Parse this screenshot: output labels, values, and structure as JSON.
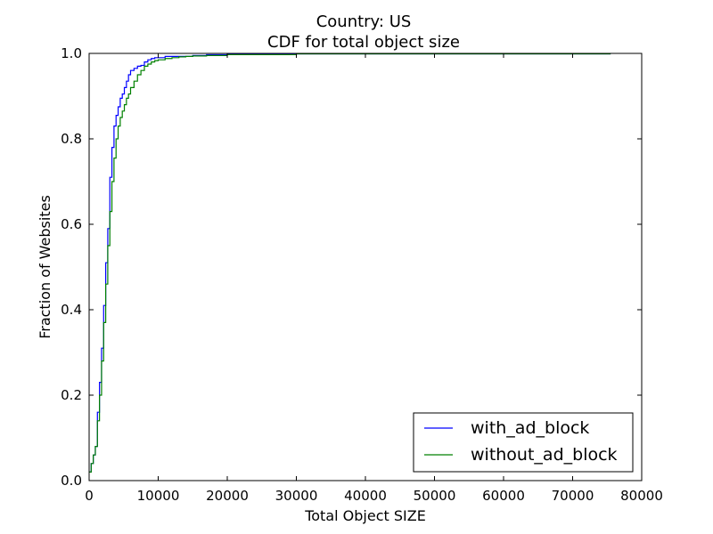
{
  "chart_data": {
    "type": "line",
    "title": "Country: US",
    "subtitle": "CDF for total object size",
    "xlabel": "Total Object SIZE",
    "ylabel": "Fraction of Websites",
    "xlim": [
      0,
      80000
    ],
    "ylim": [
      0,
      1.0
    ],
    "xticks": [
      "0",
      "10000",
      "20000",
      "30000",
      "40000",
      "50000",
      "60000",
      "70000",
      "80000"
    ],
    "yticks": [
      "0.0",
      "0.2",
      "0.4",
      "0.6",
      "0.8",
      "1.0"
    ],
    "grid": false,
    "legend_position": "lower-right",
    "series": [
      {
        "name": "with_ad_block",
        "color": "#0000ff",
        "x": [
          0,
          300,
          600,
          900,
          1200,
          1500,
          1800,
          2100,
          2400,
          2700,
          3000,
          3300,
          3600,
          3900,
          4200,
          4500,
          4800,
          5100,
          5400,
          5700,
          6000,
          6500,
          7000,
          7500,
          8000,
          8500,
          9000,
          9500,
          10000,
          11000,
          12000,
          13000,
          14000,
          15000,
          17000,
          20000,
          30000,
          40000,
          50000,
          60000,
          70000,
          75500
        ],
        "y": [
          0.02,
          0.04,
          0.06,
          0.08,
          0.16,
          0.23,
          0.31,
          0.41,
          0.51,
          0.59,
          0.71,
          0.78,
          0.83,
          0.855,
          0.875,
          0.895,
          0.905,
          0.92,
          0.935,
          0.95,
          0.96,
          0.965,
          0.97,
          0.972,
          0.98,
          0.985,
          0.988,
          0.99,
          0.99,
          0.993,
          0.993,
          0.993,
          0.993,
          0.995,
          0.997,
          0.998,
          0.999,
          0.999,
          0.999,
          0.999,
          0.999,
          0.999
        ]
      },
      {
        "name": "without_ad_block",
        "color": "#008000",
        "x": [
          0,
          300,
          600,
          900,
          1200,
          1500,
          1800,
          2100,
          2400,
          2700,
          3000,
          3300,
          3600,
          3900,
          4200,
          4500,
          4800,
          5100,
          5400,
          5700,
          6000,
          6500,
          7000,
          7500,
          8000,
          8500,
          9000,
          9500,
          10000,
          11000,
          12000,
          13000,
          14000,
          15000,
          17000,
          20000,
          30000,
          40000,
          50000,
          60000,
          70000,
          75500
        ],
        "y": [
          0.02,
          0.04,
          0.06,
          0.08,
          0.14,
          0.2,
          0.28,
          0.37,
          0.46,
          0.55,
          0.63,
          0.7,
          0.755,
          0.8,
          0.83,
          0.85,
          0.865,
          0.88,
          0.895,
          0.905,
          0.92,
          0.935,
          0.95,
          0.96,
          0.97,
          0.975,
          0.98,
          0.983,
          0.985,
          0.988,
          0.99,
          0.992,
          0.993,
          0.994,
          0.995,
          0.997,
          0.999,
          0.999,
          0.999,
          0.999,
          0.999,
          0.999
        ]
      }
    ]
  }
}
